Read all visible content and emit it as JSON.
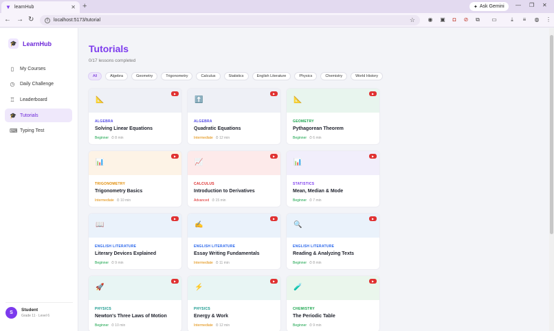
{
  "browser": {
    "tab_title": "learnHub",
    "new_tab": "+",
    "ask_gemini": "Ask Gemini",
    "url": "localhost:5173/tutorial"
  },
  "sidebar": {
    "brand": "LearnHub",
    "items": [
      {
        "label": "My Courses",
        "icon": "book-icon"
      },
      {
        "label": "Daily Challenge",
        "icon": "clock-icon"
      },
      {
        "label": "Leaderboard",
        "icon": "trophy-icon"
      },
      {
        "label": "Tutorials",
        "icon": "graduation-cap-icon",
        "active": true
      },
      {
        "label": "Typing Test",
        "icon": "keyboard-icon"
      }
    ],
    "user": {
      "initial": "S",
      "name": "Student",
      "meta": "Grade 11 · Level 6"
    }
  },
  "main": {
    "title": "Tutorials",
    "progress": "0/17 lessons completed",
    "filters": [
      "All",
      "Algebra",
      "Geometry",
      "Trigonometry",
      "Calculus",
      "Statistics",
      "English Literature",
      "Physics",
      "Chemistry",
      "World History"
    ],
    "active_filter": "All",
    "cards": [
      {
        "icon": "📐",
        "bg": "#eef0f6",
        "category": "ALGEBRA",
        "cat_color": "#4f46e5",
        "title": "Solving Linear Equations",
        "level": "Beginner",
        "duration": "⏱ 8 min"
      },
      {
        "icon": "⬆️",
        "bg": "#eef0f6",
        "category": "ALGEBRA",
        "cat_color": "#4f46e5",
        "title": "Quadratic Equations",
        "level": "Intermediate",
        "duration": "⏱ 12 min"
      },
      {
        "icon": "📐",
        "bg": "#e8f5ee",
        "category": "GEOMETRY",
        "cat_color": "#16a34a",
        "title": "Pythagorean Theorem",
        "level": "Beginner",
        "duration": "⏱ 6 min"
      },
      {
        "icon": "📊",
        "bg": "#fdf3e6",
        "category": "TRIGONOMETRY",
        "cat_color": "#e08a00",
        "title": "Trigonometry Basics",
        "level": "Intermediate",
        "duration": "⏱ 10 min"
      },
      {
        "icon": "📈",
        "bg": "#fdeaea",
        "category": "CALCULUS",
        "cat_color": "#dc2626",
        "title": "Introduction to Derivatives",
        "level": "Advanced",
        "duration": "⏱ 15 min"
      },
      {
        "icon": "📊",
        "bg": "#f1eefb",
        "category": "STATISTICS",
        "cat_color": "#7c3aed",
        "title": "Mean, Median & Mode",
        "level": "Beginner",
        "duration": "⏱ 7 min"
      },
      {
        "icon": "📖",
        "bg": "#eaf2fb",
        "category": "ENGLISH LITERATURE",
        "cat_color": "#2563eb",
        "title": "Literary Devices Explained",
        "level": "Beginner",
        "duration": "⏱ 9 min"
      },
      {
        "icon": "✍️",
        "bg": "#eaf2fb",
        "category": "ENGLISH LITERATURE",
        "cat_color": "#2563eb",
        "title": "Essay Writing Fundamentals",
        "level": "Intermediate",
        "duration": "⏱ 11 min"
      },
      {
        "icon": "🔍",
        "bg": "#eaf2fb",
        "category": "ENGLISH LITERATURE",
        "cat_color": "#2563eb",
        "title": "Reading & Analyzing Texts",
        "level": "Beginner",
        "duration": "⏱ 8 min"
      },
      {
        "icon": "🚀",
        "bg": "#e8f5f4",
        "category": "PHYSICS",
        "cat_color": "#0d9488",
        "title": "Newton's Three Laws of Motion",
        "level": "Beginner",
        "duration": "⏱ 10 min"
      },
      {
        "icon": "⚡",
        "bg": "#e8f5f4",
        "category": "PHYSICS",
        "cat_color": "#0d9488",
        "title": "Energy & Work",
        "level": "Intermediate",
        "duration": "⏱ 12 min"
      },
      {
        "icon": "🧪",
        "bg": "#eaf6ec",
        "category": "CHEMISTRY",
        "cat_color": "#16a34a",
        "title": "The Periodic Table",
        "level": "Beginner",
        "duration": "⏱ 9 min"
      }
    ]
  }
}
